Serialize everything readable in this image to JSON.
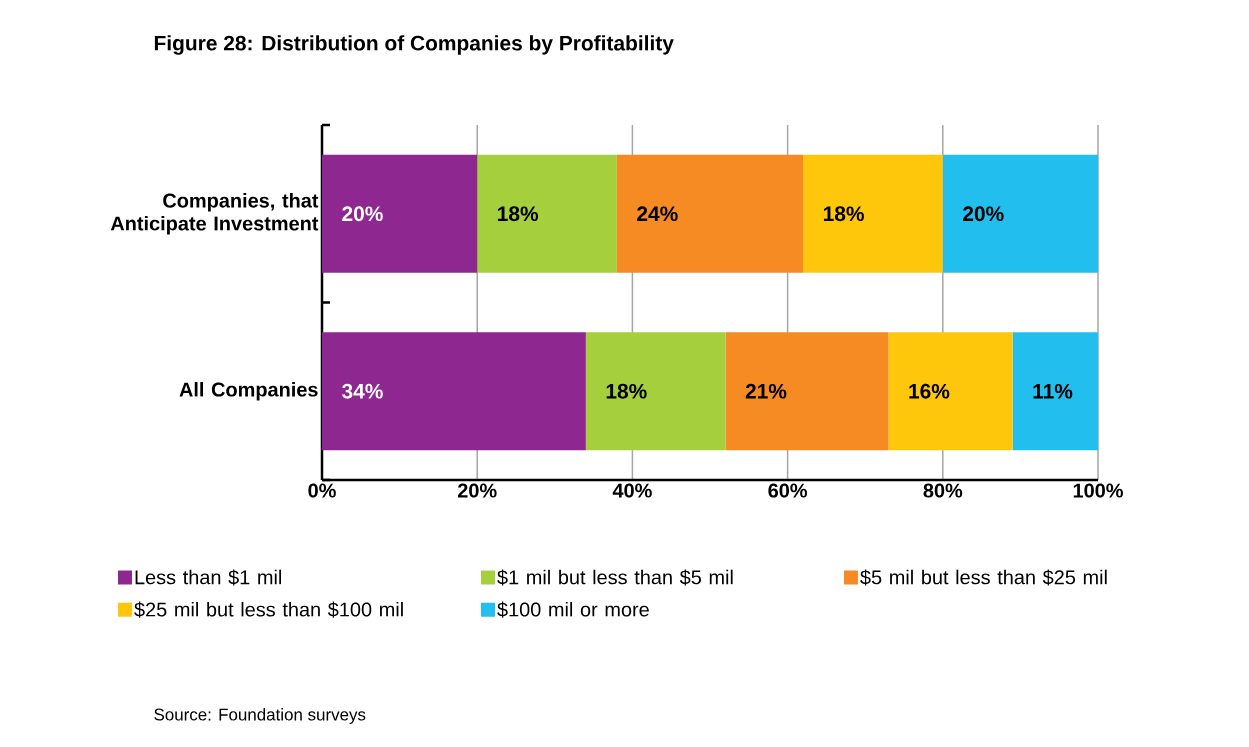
{
  "chart_data": {
    "type": "bar",
    "orientation": "horizontal",
    "stacked": true,
    "title": "Figure 28: Distribution of Companies by Profitability",
    "categories": [
      "Companies, that Anticipate Investment",
      "All Companies"
    ],
    "series": [
      {
        "name": "Less than $1 mil",
        "color": "#8e278f",
        "values": [
          20,
          34
        ],
        "value_labels": [
          "20%",
          "34%"
        ]
      },
      {
        "name": "$1 mil but less than $5 mil",
        "color": "#a5cf3c",
        "values": [
          18,
          18
        ],
        "value_labels": [
          "18%",
          "18%"
        ]
      },
      {
        "name": "$5 mil but less than $25 mil",
        "color": "#f68a23",
        "values": [
          24,
          21
        ],
        "value_labels": [
          "24%",
          "21%"
        ]
      },
      {
        "name": "$25 mil but less than $100 mil",
        "color": "#ffc70c",
        "values": [
          18,
          16
        ],
        "value_labels": [
          "18%",
          "16%"
        ]
      },
      {
        "name": "$100 mil or more",
        "color": "#22bfee",
        "values": [
          20,
          11
        ],
        "value_labels": [
          "20%",
          "11%"
        ]
      }
    ],
    "xlim": [
      0,
      100
    ],
    "xticks": [
      {
        "value": 0,
        "label": "0%"
      },
      {
        "value": 20,
        "label": "20%"
      },
      {
        "value": 40,
        "label": "40%"
      },
      {
        "value": 60,
        "label": "60%"
      },
      {
        "value": 80,
        "label": "80%"
      },
      {
        "value": 100,
        "label": "100%"
      }
    ],
    "grid": "x",
    "legend": "bottom",
    "annotations": [
      "Source: Foundation surveys"
    ]
  }
}
